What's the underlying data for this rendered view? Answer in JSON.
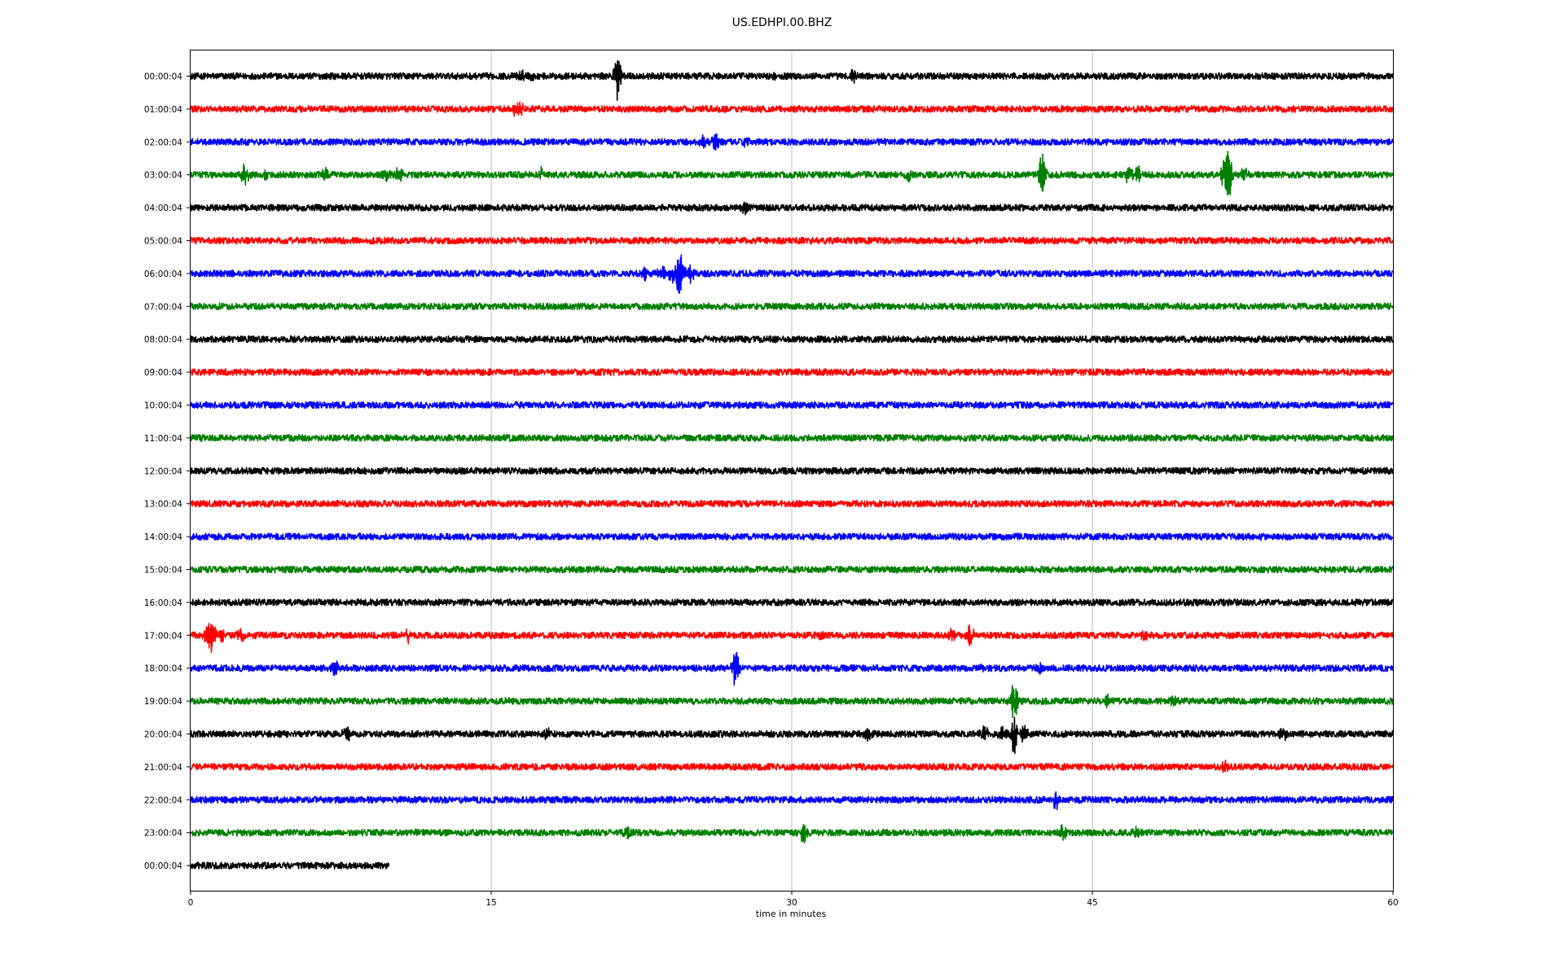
{
  "chart_data": {
    "type": "line",
    "title": "US.EDHPI.00.BHZ",
    "xlabel": "time in minutes",
    "ylabel": "",
    "xlim": [
      0,
      60
    ],
    "x_ticks": [
      "0",
      "15",
      "30",
      "45",
      "60"
    ],
    "grid": "vertical",
    "colors": [
      "#000000",
      "#ff0000",
      "#0000ff",
      "#008000"
    ],
    "series": [
      {
        "label": "00:00:04",
        "color": "#000000",
        "end_minute": 60,
        "noise": 4,
        "events": [
          {
            "t": 16.5,
            "amp": 6
          },
          {
            "t": 17.0,
            "amp": 5
          },
          {
            "t": 21.3,
            "amp": 34
          },
          {
            "t": 29.2,
            "amp": 3
          },
          {
            "t": 33.1,
            "amp": 7
          }
        ]
      },
      {
        "label": "01:00:04",
        "color": "#ff0000",
        "end_minute": 60,
        "noise": 4,
        "events": [
          {
            "t": 16.2,
            "amp": 8
          },
          {
            "t": 16.5,
            "amp": 6
          }
        ]
      },
      {
        "label": "02:00:04",
        "color": "#0000ff",
        "end_minute": 60,
        "noise": 4,
        "events": [
          {
            "t": 25.6,
            "amp": 6
          },
          {
            "t": 26.2,
            "amp": 9
          },
          {
            "t": 27.7,
            "amp": 6
          }
        ]
      },
      {
        "label": "03:00:04",
        "color": "#008000",
        "end_minute": 60,
        "noise": 4,
        "events": [
          {
            "t": 2.7,
            "amp": 16
          },
          {
            "t": 3.7,
            "amp": 8
          },
          {
            "t": 6.7,
            "amp": 8
          },
          {
            "t": 9.8,
            "amp": 8
          },
          {
            "t": 10.4,
            "amp": 9
          },
          {
            "t": 17.5,
            "amp": 7
          },
          {
            "t": 35.8,
            "amp": 7
          },
          {
            "t": 42.5,
            "amp": 30
          },
          {
            "t": 46.8,
            "amp": 12
          },
          {
            "t": 47.3,
            "amp": 10
          },
          {
            "t": 51.6,
            "amp": 18
          },
          {
            "t": 51.8,
            "amp": 28
          },
          {
            "t": 52.6,
            "amp": 8
          }
        ]
      },
      {
        "label": "04:00:04",
        "color": "#000000",
        "end_minute": 60,
        "noise": 4,
        "events": [
          {
            "t": 27.7,
            "amp": 8
          }
        ]
      },
      {
        "label": "05:00:04",
        "color": "#ff0000",
        "end_minute": 60,
        "noise": 4,
        "events": []
      },
      {
        "label": "06:00:04",
        "color": "#0000ff",
        "end_minute": 60,
        "noise": 4,
        "events": [
          {
            "t": 22.6,
            "amp": 8
          },
          {
            "t": 23.5,
            "amp": 10
          },
          {
            "t": 24.0,
            "amp": 12
          },
          {
            "t": 24.4,
            "amp": 28
          },
          {
            "t": 24.9,
            "amp": 14
          }
        ]
      },
      {
        "label": "07:00:04",
        "color": "#008000",
        "end_minute": 60,
        "noise": 4,
        "events": []
      },
      {
        "label": "08:00:04",
        "color": "#000000",
        "end_minute": 60,
        "noise": 4,
        "events": []
      },
      {
        "label": "09:00:04",
        "color": "#ff0000",
        "end_minute": 60,
        "noise": 4,
        "events": []
      },
      {
        "label": "10:00:04",
        "color": "#0000ff",
        "end_minute": 60,
        "noise": 4,
        "events": []
      },
      {
        "label": "11:00:04",
        "color": "#008000",
        "end_minute": 60,
        "noise": 4,
        "events": []
      },
      {
        "label": "12:00:04",
        "color": "#000000",
        "end_minute": 60,
        "noise": 4,
        "events": []
      },
      {
        "label": "13:00:04",
        "color": "#ff0000",
        "end_minute": 60,
        "noise": 4,
        "events": []
      },
      {
        "label": "14:00:04",
        "color": "#0000ff",
        "end_minute": 60,
        "noise": 4,
        "events": []
      },
      {
        "label": "15:00:04",
        "color": "#008000",
        "end_minute": 60,
        "noise": 4,
        "events": []
      },
      {
        "label": "16:00:04",
        "color": "#000000",
        "end_minute": 60,
        "noise": 4,
        "events": []
      },
      {
        "label": "17:00:04",
        "color": "#ff0000",
        "end_minute": 60,
        "noise": 4,
        "events": [
          {
            "t": 0.8,
            "amp": 14
          },
          {
            "t": 1.05,
            "amp": 28
          },
          {
            "t": 1.6,
            "amp": 10
          },
          {
            "t": 2.5,
            "amp": 8
          },
          {
            "t": 10.8,
            "amp": 8
          },
          {
            "t": 31.5,
            "amp": 7
          },
          {
            "t": 38.0,
            "amp": 9
          },
          {
            "t": 38.9,
            "amp": 14
          },
          {
            "t": 47.6,
            "amp": 7
          }
        ]
      },
      {
        "label": "18:00:04",
        "color": "#0000ff",
        "end_minute": 60,
        "noise": 4,
        "events": [
          {
            "t": 7.2,
            "amp": 14
          },
          {
            "t": 27.2,
            "amp": 24
          },
          {
            "t": 39.5,
            "amp": 6
          },
          {
            "t": 42.3,
            "amp": 7
          }
        ]
      },
      {
        "label": "19:00:04",
        "color": "#008000",
        "end_minute": 60,
        "noise": 4,
        "events": [
          {
            "t": 41.1,
            "amp": 30
          },
          {
            "t": 45.8,
            "amp": 6
          },
          {
            "t": 49.0,
            "amp": 8
          }
        ]
      },
      {
        "label": "20:00:04",
        "color": "#000000",
        "end_minute": 60,
        "noise": 4,
        "events": [
          {
            "t": 7.8,
            "amp": 14
          },
          {
            "t": 17.8,
            "amp": 9
          },
          {
            "t": 33.8,
            "amp": 8
          },
          {
            "t": 39.6,
            "amp": 10
          },
          {
            "t": 40.5,
            "amp": 9
          },
          {
            "t": 41.1,
            "amp": 26
          },
          {
            "t": 41.6,
            "amp": 10
          },
          {
            "t": 54.5,
            "amp": 10
          }
        ]
      },
      {
        "label": "21:00:04",
        "color": "#ff0000",
        "end_minute": 60,
        "noise": 4,
        "events": [
          {
            "t": 51.6,
            "amp": 6
          }
        ]
      },
      {
        "label": "22:00:04",
        "color": "#0000ff",
        "end_minute": 60,
        "noise": 4,
        "events": [
          {
            "t": 43.2,
            "amp": 12
          }
        ]
      },
      {
        "label": "23:00:04",
        "color": "#008000",
        "end_minute": 60,
        "noise": 4,
        "events": [
          {
            "t": 21.8,
            "amp": 6
          },
          {
            "t": 30.6,
            "amp": 12
          },
          {
            "t": 43.5,
            "amp": 10
          },
          {
            "t": 47.2,
            "amp": 6
          }
        ]
      },
      {
        "label": "00:00:04",
        "color": "#000000",
        "end_minute": 9.9,
        "noise": 4,
        "events": []
      }
    ]
  }
}
